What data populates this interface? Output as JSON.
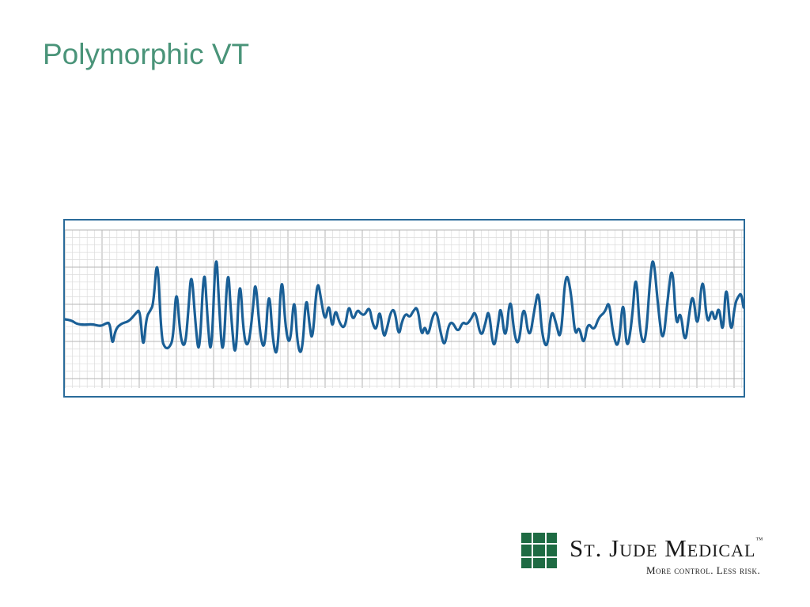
{
  "slide": {
    "title": "Polymorphic VT"
  },
  "ecg": {
    "trace_color": "#1a5f96",
    "grid_minor_color": "#dcdcdc",
    "grid_major_color": "#b5b5b5",
    "border_color": "#2a6b9a"
  },
  "logo": {
    "name": "St. Jude Medical",
    "trademark": "™",
    "tagline": "More control. Less risk.",
    "mark_color": "#1e6b43",
    "icon": "st-jude-medical-grid-mark"
  }
}
